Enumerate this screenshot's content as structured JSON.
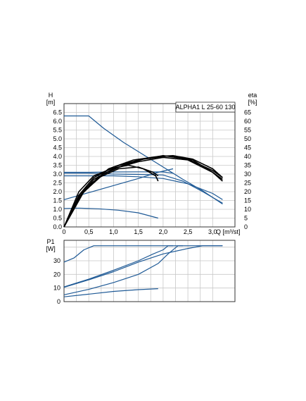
{
  "chart_data": [
    {
      "type": "line",
      "name": "pump-curves",
      "title": "ALPHA1 L 25-60 130",
      "left_axis_label": [
        "H",
        "[m]"
      ],
      "right_axis_label": [
        "eta",
        "[%]"
      ],
      "x_axis_label": "Q [m³/st]",
      "x_ticks": [
        "0",
        "0,5",
        "1,0",
        "1,5",
        "2,0",
        "2,5",
        "3,0"
      ],
      "y_ticks": [
        "0.0",
        "0.5",
        "1.0",
        "1.5",
        "2.0",
        "2.5",
        "3.0",
        "3.5",
        "4.0",
        "4.5",
        "5.0",
        "5.5",
        "6.0",
        "6.5"
      ],
      "y2_ticks": [
        "0",
        "5",
        "10",
        "15",
        "20",
        "25",
        "30",
        "35",
        "40",
        "45",
        "50",
        "55",
        "60",
        "65"
      ],
      "xlim": [
        0,
        3.45
      ],
      "ylim": [
        0,
        7.0
      ],
      "y2lim": [
        0,
        70
      ],
      "grid": true,
      "colors": {
        "head": "#1f5a96",
        "efficiency": "#000000"
      },
      "series": [
        {
          "kind": "head",
          "axis": "left",
          "points": [
            [
              0,
              6.3
            ],
            [
              0.5,
              6.3
            ],
            [
              0.8,
              5.6
            ],
            [
              1.2,
              4.8
            ],
            [
              1.6,
              4.1
            ],
            [
              2.0,
              3.4
            ],
            [
              2.4,
              2.7
            ],
            [
              2.8,
              2.05
            ],
            [
              3.2,
              1.3
            ]
          ]
        },
        {
          "kind": "head",
          "axis": "left",
          "points": [
            [
              0,
              3.05
            ],
            [
              0.5,
              3.05
            ],
            [
              1.0,
              3.0
            ],
            [
              1.5,
              2.98
            ],
            [
              2.0,
              2.95
            ],
            [
              2.4,
              2.6
            ],
            [
              2.8,
              2.0
            ],
            [
              3.2,
              1.35
            ]
          ]
        },
        {
          "kind": "head",
          "axis": "left",
          "points": [
            [
              0,
              3.1
            ],
            [
              0.5,
              3.1
            ],
            [
              1.0,
              3.12
            ],
            [
              1.5,
              3.13
            ],
            [
              2.0,
              3.12
            ],
            [
              2.2,
              3.05
            ]
          ]
        },
        {
          "kind": "head",
          "axis": "left",
          "points": [
            [
              0,
              1.55
            ],
            [
              0.5,
              1.95
            ],
            [
              1.0,
              2.35
            ],
            [
              1.5,
              2.75
            ],
            [
              1.9,
              3.1
            ],
            [
              2.2,
              3.3
            ]
          ]
        },
        {
          "kind": "head",
          "axis": "left",
          "points": [
            [
              0,
              2.9
            ],
            [
              0.5,
              2.9
            ],
            [
              1.0,
              2.9
            ],
            [
              1.5,
              2.85
            ],
            [
              2.0,
              2.75
            ],
            [
              2.5,
              2.45
            ],
            [
              3.0,
              1.9
            ],
            [
              3.2,
              1.55
            ]
          ]
        },
        {
          "kind": "head",
          "axis": "left",
          "points": [
            [
              0,
              1.05
            ],
            [
              0.3,
              1.07
            ],
            [
              0.7,
              1.03
            ],
            [
              1.1,
              0.95
            ],
            [
              1.5,
              0.8
            ],
            [
              1.9,
              0.5
            ]
          ]
        },
        {
          "kind": "efficiency",
          "axis": "right",
          "points": [
            [
              0,
              0
            ],
            [
              0.3,
              20
            ],
            [
              0.6,
              29
            ],
            [
              1.0,
              33.5
            ],
            [
              1.3,
              35
            ],
            [
              1.6,
              33
            ],
            [
              1.85,
              29
            ],
            [
              1.9,
              26
            ]
          ]
        },
        {
          "kind": "efficiency",
          "axis": "right",
          "points": [
            [
              0,
              0
            ],
            [
              0.3,
              17
            ],
            [
              0.6,
              27
            ],
            [
              1.0,
              33
            ],
            [
              1.5,
              37
            ],
            [
              2.0,
              39.5
            ],
            [
              2.5,
              38
            ],
            [
              3.0,
              31
            ],
            [
              3.2,
              27
            ]
          ]
        },
        {
          "kind": "efficiency",
          "axis": "right",
          "points": [
            [
              0,
              0
            ],
            [
              0.3,
              18
            ],
            [
              0.6,
              28
            ],
            [
              1.0,
              34
            ],
            [
              1.5,
              38
            ],
            [
              2.0,
              40.5
            ],
            [
              2.5,
              38.5
            ],
            [
              3.0,
              32
            ],
            [
              3.2,
              28
            ]
          ]
        },
        {
          "kind": "efficiency",
          "axis": "right",
          "points": [
            [
              0,
              0
            ],
            [
              0.4,
              20
            ],
            [
              0.8,
              30
            ],
            [
              1.2,
              35
            ],
            [
              1.6,
              38.5
            ],
            [
              2.1,
              40.3
            ],
            [
              2.6,
              38
            ],
            [
              3.0,
              31
            ],
            [
              3.2,
              26
            ]
          ]
        },
        {
          "kind": "efficiency",
          "axis": "right",
          "points": [
            [
              0,
              0
            ],
            [
              0.4,
              21
            ],
            [
              0.9,
              33
            ],
            [
              1.4,
              38
            ],
            [
              1.9,
              40
            ],
            [
              2.2,
              40.5
            ],
            [
              2.6,
              38.5
            ],
            [
              3.0,
              33
            ],
            [
              3.2,
              28
            ]
          ]
        },
        {
          "kind": "efficiency",
          "axis": "right",
          "points": [
            [
              0,
              0
            ],
            [
              0.3,
              17
            ],
            [
              0.7,
              28
            ],
            [
              1.1,
              33
            ],
            [
              1.5,
              34
            ],
            [
              1.8,
              31
            ],
            [
              1.9,
              29
            ]
          ]
        }
      ]
    },
    {
      "type": "line",
      "name": "power-curves",
      "left_axis_label": [
        "P1",
        "[W]"
      ],
      "y_ticks": [
        "0",
        "10",
        "20",
        "30"
      ],
      "xlim": [
        0,
        3.45
      ],
      "ylim": [
        0,
        45
      ],
      "grid": true,
      "colors": {
        "power": "#1f5a96"
      },
      "series": [
        {
          "kind": "power",
          "points": [
            [
              0,
              29
            ],
            [
              0.2,
              32
            ],
            [
              0.4,
              38
            ],
            [
              0.6,
              41
            ],
            [
              1.0,
              41
            ],
            [
              2.0,
              41
            ],
            [
              3.2,
              41
            ]
          ]
        },
        {
          "kind": "power",
          "points": [
            [
              0,
              10.5
            ],
            [
              0.5,
              16
            ],
            [
              1.0,
              22
            ],
            [
              1.5,
              29
            ],
            [
              2.0,
              35
            ],
            [
              2.5,
              39
            ],
            [
              2.8,
              41
            ],
            [
              3.2,
              41
            ]
          ]
        },
        {
          "kind": "power",
          "points": [
            [
              0,
              10.8
            ],
            [
              0.5,
              16.5
            ],
            [
              1.0,
              23
            ],
            [
              1.5,
              30
            ],
            [
              1.8,
              35
            ],
            [
              2.0,
              38
            ],
            [
              2.1,
              41
            ],
            [
              2.2,
              41
            ]
          ]
        },
        {
          "kind": "power",
          "points": [
            [
              0,
              5
            ],
            [
              0.5,
              9
            ],
            [
              1.0,
              14
            ],
            [
              1.5,
              20
            ],
            [
              1.9,
              28
            ],
            [
              2.1,
              35
            ],
            [
              2.3,
              41
            ],
            [
              2.4,
              41
            ]
          ]
        },
        {
          "kind": "power",
          "points": [
            [
              0,
              3.5
            ],
            [
              0.5,
              5.5
            ],
            [
              1.0,
              7.5
            ],
            [
              1.5,
              8.8
            ],
            [
              1.9,
              9.5
            ]
          ]
        }
      ]
    }
  ]
}
